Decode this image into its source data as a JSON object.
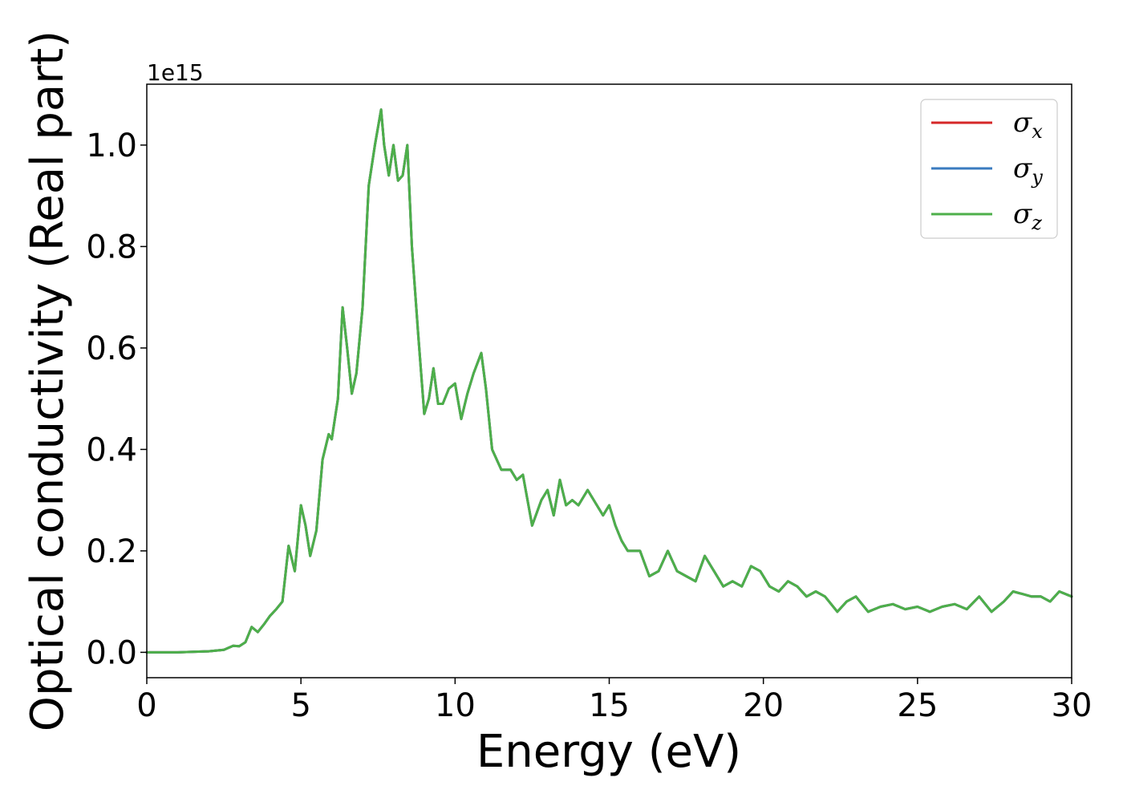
{
  "chart_data": {
    "type": "line",
    "xlabel": "Energy (eV)",
    "ylabel": "Optical conductivity (Real part)",
    "y_offset_label": "1e15",
    "xlim": [
      0,
      30
    ],
    "ylim": [
      -0.05,
      1.12
    ],
    "y_scale_note": "values in units of 1e15",
    "xticks": [
      0,
      5,
      10,
      15,
      20,
      25,
      30
    ],
    "xtick_labels": [
      "0",
      "5",
      "10",
      "15",
      "20",
      "25",
      "30"
    ],
    "yticks": [
      0.0,
      0.2,
      0.4,
      0.6,
      0.8,
      1.0
    ],
    "ytick_labels": [
      "0.0",
      "0.2",
      "0.4",
      "0.6",
      "0.8",
      "1.0"
    ],
    "grid": false,
    "legend_position": "top-right",
    "series_style": [
      {
        "symbol": "σ",
        "subscript": "x",
        "color": "#d62728"
      },
      {
        "symbol": "σ",
        "subscript": "y",
        "color": "#3a7bbf"
      },
      {
        "symbol": "σ",
        "subscript": "z",
        "color": "#4daf4a"
      }
    ],
    "x": [
      0,
      1,
      2,
      2.5,
      2.8,
      3.0,
      3.2,
      3.4,
      3.6,
      3.8,
      4.0,
      4.2,
      4.4,
      4.6,
      4.8,
      5.0,
      5.15,
      5.3,
      5.5,
      5.7,
      5.9,
      6.0,
      6.2,
      6.35,
      6.5,
      6.65,
      6.8,
      7.0,
      7.2,
      7.4,
      7.6,
      7.7,
      7.85,
      8.0,
      8.15,
      8.3,
      8.45,
      8.6,
      8.8,
      9.0,
      9.15,
      9.3,
      9.45,
      9.6,
      9.8,
      10.0,
      10.2,
      10.4,
      10.6,
      10.85,
      11.0,
      11.2,
      11.5,
      11.8,
      12.0,
      12.2,
      12.5,
      12.8,
      13.0,
      13.2,
      13.4,
      13.6,
      13.8,
      14.0,
      14.3,
      14.6,
      14.8,
      15.0,
      15.2,
      15.4,
      15.6,
      16.0,
      16.3,
      16.6,
      16.9,
      17.2,
      17.5,
      17.8,
      18.1,
      18.4,
      18.7,
      19.0,
      19.3,
      19.6,
      19.9,
      20.2,
      20.5,
      20.8,
      21.1,
      21.4,
      21.7,
      22.0,
      22.4,
      22.7,
      23.0,
      23.4,
      23.8,
      24.2,
      24.6,
      25.0,
      25.4,
      25.8,
      26.2,
      26.6,
      27.0,
      27.4,
      27.8,
      28.1,
      28.4,
      28.7,
      29.0,
      29.3,
      29.6,
      30.0
    ],
    "series": [
      {
        "values": [
          0.0,
          0.0,
          0.002,
          0.005,
          0.013,
          0.012,
          0.02,
          0.05,
          0.04,
          0.055,
          0.072,
          0.085,
          0.1,
          0.21,
          0.16,
          0.29,
          0.25,
          0.19,
          0.24,
          0.38,
          0.43,
          0.42,
          0.5,
          0.68,
          0.6,
          0.51,
          0.55,
          0.68,
          0.92,
          1.0,
          1.07,
          1.0,
          0.94,
          1.0,
          0.93,
          0.94,
          1.0,
          0.8,
          0.63,
          0.47,
          0.5,
          0.56,
          0.49,
          0.49,
          0.52,
          0.53,
          0.46,
          0.51,
          0.55,
          0.59,
          0.52,
          0.4,
          0.36,
          0.36,
          0.34,
          0.35,
          0.25,
          0.3,
          0.32,
          0.27,
          0.34,
          0.29,
          0.3,
          0.29,
          0.32,
          0.29,
          0.27,
          0.29,
          0.25,
          0.22,
          0.2,
          0.2,
          0.15,
          0.16,
          0.2,
          0.16,
          0.15,
          0.14,
          0.19,
          0.16,
          0.13,
          0.14,
          0.13,
          0.17,
          0.16,
          0.13,
          0.12,
          0.14,
          0.13,
          0.11,
          0.12,
          0.11,
          0.08,
          0.1,
          0.11,
          0.08,
          0.09,
          0.095,
          0.085,
          0.09,
          0.08,
          0.09,
          0.095,
          0.085,
          0.11,
          0.08,
          0.1,
          0.12,
          0.115,
          0.11,
          0.11,
          0.1,
          0.12,
          0.11
        ]
      },
      {
        "values": [
          0.0,
          0.0,
          0.002,
          0.005,
          0.013,
          0.012,
          0.02,
          0.05,
          0.04,
          0.055,
          0.072,
          0.085,
          0.1,
          0.21,
          0.16,
          0.29,
          0.25,
          0.19,
          0.24,
          0.38,
          0.43,
          0.42,
          0.5,
          0.68,
          0.6,
          0.51,
          0.55,
          0.68,
          0.92,
          1.0,
          1.07,
          1.0,
          0.94,
          1.0,
          0.93,
          0.94,
          1.0,
          0.8,
          0.63,
          0.47,
          0.5,
          0.56,
          0.49,
          0.49,
          0.52,
          0.53,
          0.46,
          0.51,
          0.55,
          0.59,
          0.52,
          0.4,
          0.36,
          0.36,
          0.34,
          0.35,
          0.25,
          0.3,
          0.32,
          0.27,
          0.34,
          0.29,
          0.3,
          0.29,
          0.32,
          0.29,
          0.27,
          0.29,
          0.25,
          0.22,
          0.2,
          0.2,
          0.15,
          0.16,
          0.2,
          0.16,
          0.15,
          0.14,
          0.19,
          0.16,
          0.13,
          0.14,
          0.13,
          0.17,
          0.16,
          0.13,
          0.12,
          0.14,
          0.13,
          0.11,
          0.12,
          0.11,
          0.08,
          0.1,
          0.11,
          0.08,
          0.09,
          0.095,
          0.085,
          0.09,
          0.08,
          0.09,
          0.095,
          0.085,
          0.11,
          0.08,
          0.1,
          0.12,
          0.115,
          0.11,
          0.11,
          0.1,
          0.12,
          0.11
        ]
      },
      {
        "values": [
          0.0,
          0.0,
          0.002,
          0.005,
          0.013,
          0.012,
          0.02,
          0.05,
          0.04,
          0.055,
          0.072,
          0.085,
          0.1,
          0.21,
          0.16,
          0.29,
          0.25,
          0.19,
          0.24,
          0.38,
          0.43,
          0.42,
          0.5,
          0.68,
          0.6,
          0.51,
          0.55,
          0.68,
          0.92,
          1.0,
          1.07,
          1.0,
          0.94,
          1.0,
          0.93,
          0.94,
          1.0,
          0.8,
          0.63,
          0.47,
          0.5,
          0.56,
          0.49,
          0.49,
          0.52,
          0.53,
          0.46,
          0.51,
          0.55,
          0.59,
          0.52,
          0.4,
          0.36,
          0.36,
          0.34,
          0.35,
          0.25,
          0.3,
          0.32,
          0.27,
          0.34,
          0.29,
          0.3,
          0.29,
          0.32,
          0.29,
          0.27,
          0.29,
          0.25,
          0.22,
          0.2,
          0.2,
          0.15,
          0.16,
          0.2,
          0.16,
          0.15,
          0.14,
          0.19,
          0.16,
          0.13,
          0.14,
          0.13,
          0.17,
          0.16,
          0.13,
          0.12,
          0.14,
          0.13,
          0.11,
          0.12,
          0.11,
          0.08,
          0.1,
          0.11,
          0.08,
          0.09,
          0.095,
          0.085,
          0.09,
          0.08,
          0.09,
          0.095,
          0.085,
          0.11,
          0.08,
          0.1,
          0.12,
          0.115,
          0.11,
          0.11,
          0.1,
          0.12,
          0.11
        ]
      }
    ]
  }
}
